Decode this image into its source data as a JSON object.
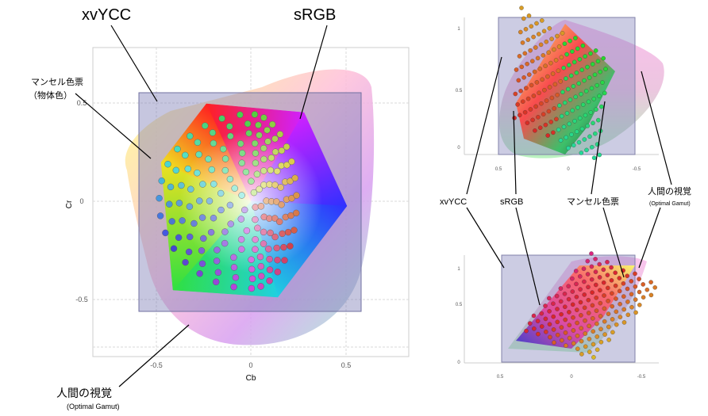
{
  "left": {
    "labels": {
      "xvycc": "xvYCC",
      "srgb": "sRGB",
      "munsell": "マンセル色票",
      "munsell_note": "（物体色）",
      "human": "人間の視覚",
      "human_note": "(Optimal Gamut)"
    },
    "x_axis": {
      "label": "Cb",
      "ticks": [
        "-0.5",
        "0",
        "0.5"
      ]
    },
    "y_axis": {
      "label": "Cr",
      "ticks": [
        "0.5",
        "0",
        "-0.5"
      ]
    }
  },
  "right": {
    "labels": {
      "xvycc": "xvYCC",
      "srgb": "sRGB",
      "munsell": "マンセル色票",
      "human": "人間の視覚",
      "human_note": "(Optimal Gamut)"
    },
    "top_plot": {
      "z_ticks": [
        "1",
        "0.5",
        "0"
      ],
      "x_ticks": [
        "0.5",
        "0",
        "-0.5"
      ]
    },
    "bottom_plot": {
      "z_ticks": [
        "1",
        "0.5",
        "0"
      ],
      "x_ticks": [
        "0.5",
        "0",
        "-0.5"
      ]
    }
  }
}
